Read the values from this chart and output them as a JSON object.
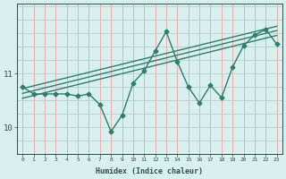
{
  "xlabel": "Humidex (Indice chaleur)",
  "x_values": [
    0,
    1,
    2,
    3,
    4,
    5,
    6,
    7,
    8,
    9,
    10,
    11,
    12,
    13,
    14,
    15,
    16,
    17,
    18,
    19,
    20,
    21,
    22,
    23
  ],
  "y_values": [
    10.75,
    10.62,
    10.62,
    10.62,
    10.62,
    10.58,
    10.62,
    10.42,
    9.92,
    10.22,
    10.82,
    11.05,
    11.42,
    11.78,
    11.22,
    10.75,
    10.45,
    10.78,
    10.55,
    11.12,
    11.52,
    11.72,
    11.82,
    11.55
  ],
  "ylim": [
    9.5,
    12.3
  ],
  "yticks": [
    10,
    11
  ],
  "xlim": [
    -0.5,
    23.5
  ],
  "line_color": "#2e7d6e",
  "bg_color": "#d8f0ee",
  "grid_color_v": "#f0a0a0",
  "grid_color_h": "#b8d0ce",
  "trend_color": "#2e7d6e",
  "trend_lines": [
    [
      0,
      10.63,
      23,
      11.8
    ],
    [
      0,
      10.72,
      23,
      11.88
    ],
    [
      0,
      10.54,
      23,
      11.71
    ]
  ]
}
